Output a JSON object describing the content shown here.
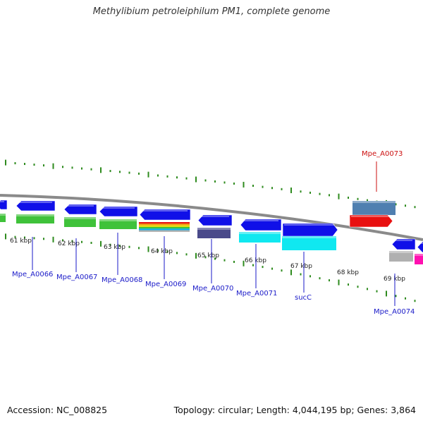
{
  "title": "Methylibium petroleiphilum PM1, complete genome",
  "footer": {
    "accession": "Accession: NC_008825",
    "summary": "Topology: circular; Length: 4,044,195 bp; Genes: 3,864"
  },
  "colors": {
    "backbone": "#8a8a8a",
    "tick": "#2e8b1e",
    "gene_blue": "#1010e8",
    "gene_green": "#3fc23a",
    "gene_cyan": "#10e8f0",
    "gene_purple": "#4a4a8a",
    "gene_steel": "#4f7fb0",
    "gene_red": "#e81010",
    "gene_gray": "#b0b0b0",
    "gene_magenta": "#ff10b0",
    "label_blue": "#1a1ac8",
    "label_red": "#cc1010"
  },
  "ruler": {
    "labels": [
      "61 kbp",
      "62 kbp",
      "63 kbp",
      "64 kbp",
      "65 kbp",
      "66 kbp",
      "67 kbp",
      "68 kbp",
      "69 kbp"
    ]
  },
  "genes": [
    {
      "name": "Mpe_A0066",
      "color": "label_blue"
    },
    {
      "name": "Mpe_A0067",
      "color": "label_blue"
    },
    {
      "name": "Mpe_A0068",
      "color": "label_blue"
    },
    {
      "name": "Mpe_A0069",
      "color": "label_blue"
    },
    {
      "name": "Mpe_A0070",
      "color": "label_blue"
    },
    {
      "name": "Mpe_A0071",
      "color": "label_blue"
    },
    {
      "name": "sucC",
      "color": "label_blue"
    },
    {
      "name": "Mpe_A0073",
      "color": "label_red"
    },
    {
      "name": "Mpe_A0074",
      "color": "label_blue"
    }
  ]
}
